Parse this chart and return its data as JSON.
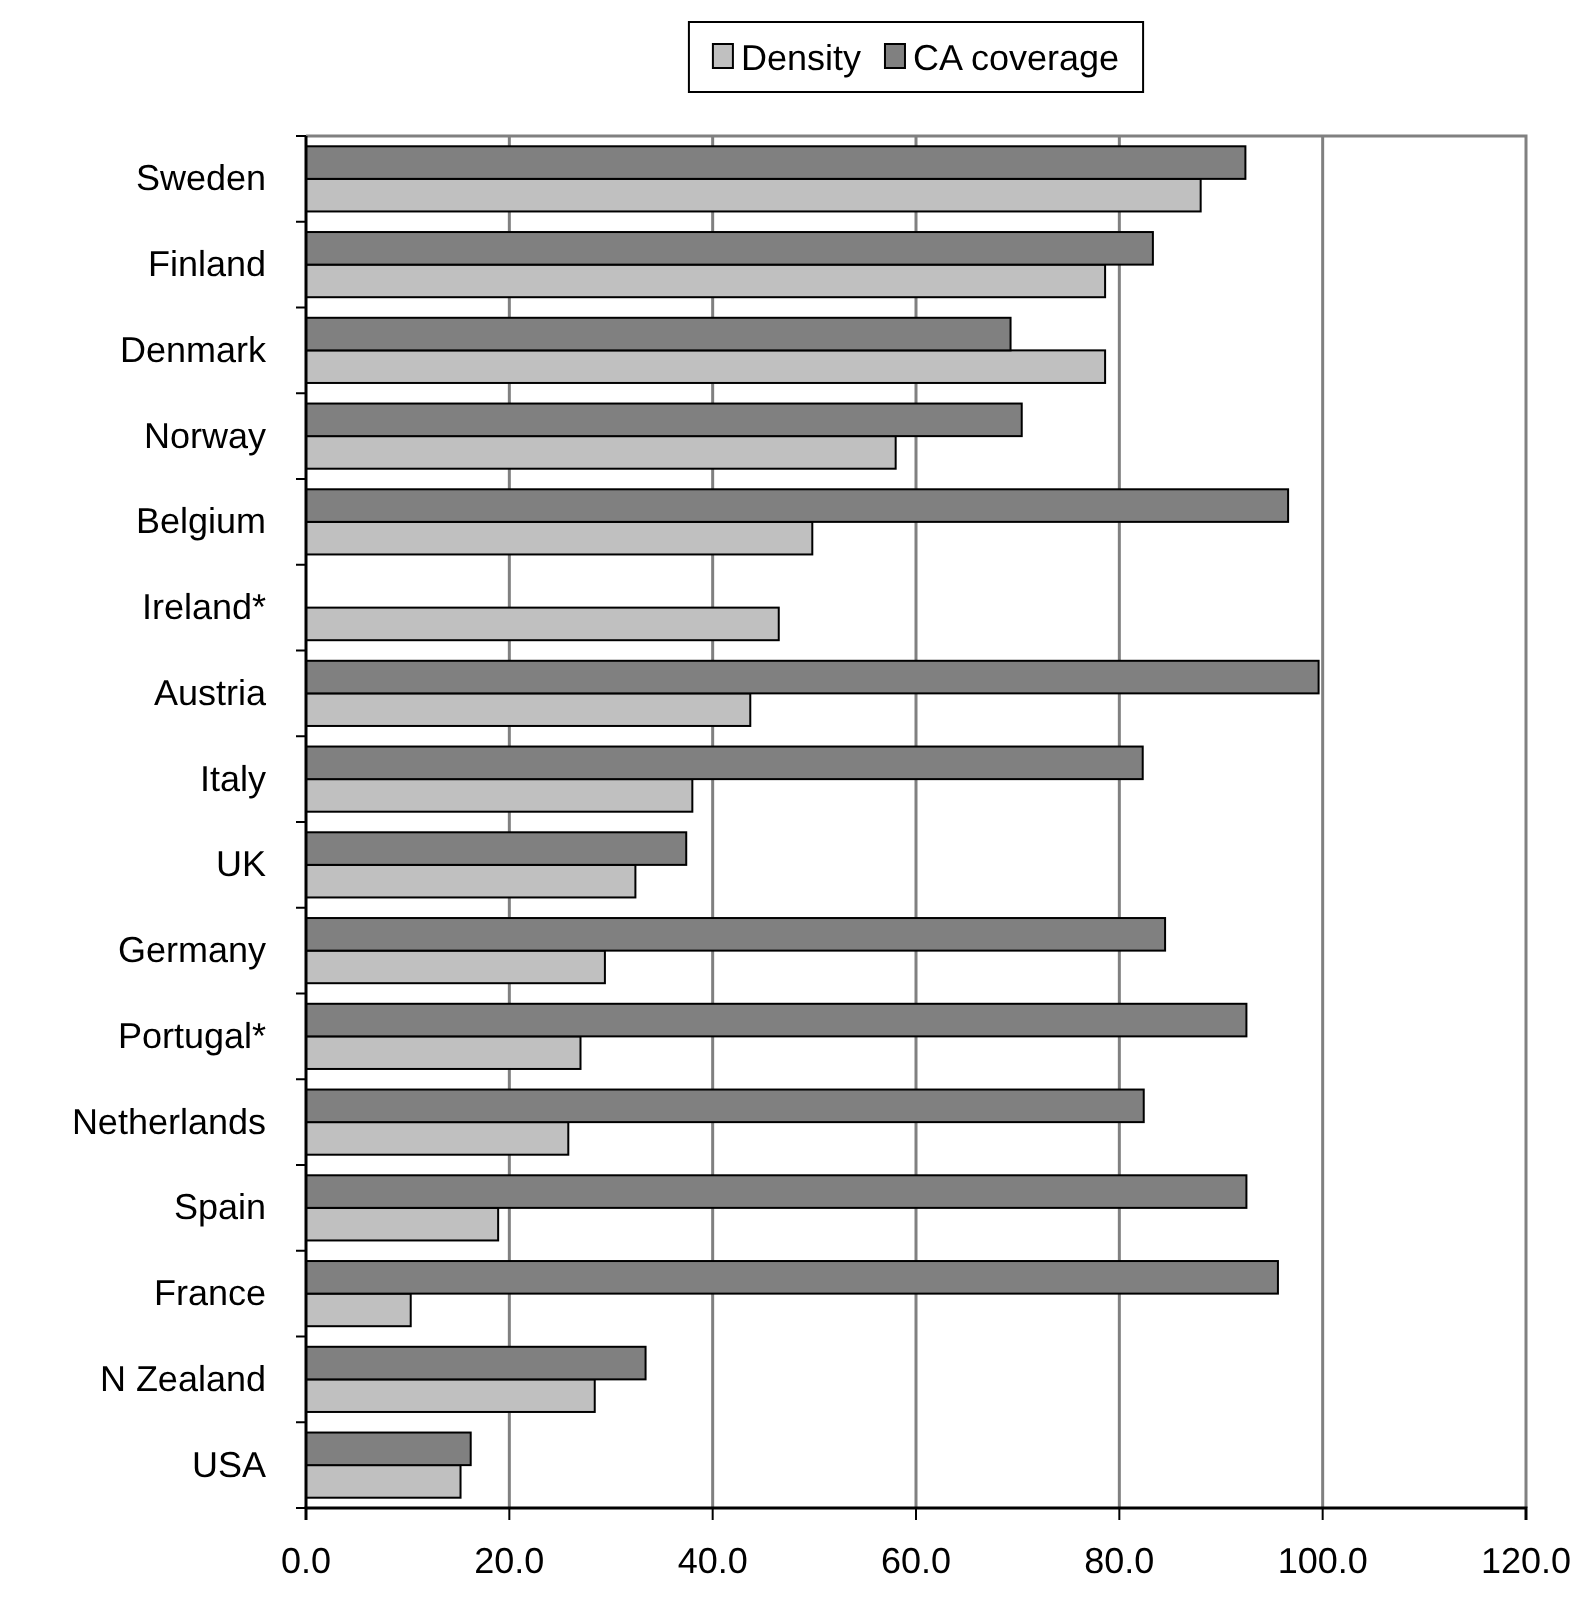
{
  "chart_data": {
    "type": "bar",
    "orientation": "horizontal",
    "categories": [
      "Sweden",
      "Finland",
      "Denmark",
      "Norway",
      "Belgium",
      "Ireland*",
      "Austria",
      "Italy",
      "UK",
      "Germany",
      "Portugal*",
      "Netherlands",
      "Spain",
      "France",
      "N Zealand",
      "USA"
    ],
    "series": [
      {
        "name": "Density",
        "color": "#c0c0c0",
        "values": [
          88.0,
          78.6,
          78.6,
          58.0,
          49.8,
          46.5,
          43.7,
          38.0,
          32.4,
          29.4,
          27.0,
          25.8,
          18.9,
          10.3,
          28.4,
          15.2
        ]
      },
      {
        "name": "CA coverage",
        "color": "#808080",
        "values": [
          92.4,
          83.3,
          69.3,
          70.4,
          96.6,
          null,
          99.6,
          82.3,
          37.4,
          84.5,
          92.5,
          82.4,
          92.5,
          95.6,
          33.4,
          16.2
        ]
      }
    ],
    "xlim": [
      0,
      120
    ],
    "xticks": [
      {
        "value": 0,
        "label": "0.0"
      },
      {
        "value": 20,
        "label": "20.0"
      },
      {
        "value": 40,
        "label": "40.0"
      },
      {
        "value": 60,
        "label": "60.0"
      },
      {
        "value": 80,
        "label": "80.0"
      },
      {
        "value": 100,
        "label": "100.0"
      },
      {
        "value": 120,
        "label": "120.0"
      }
    ],
    "grid": "x",
    "legend": "top"
  }
}
